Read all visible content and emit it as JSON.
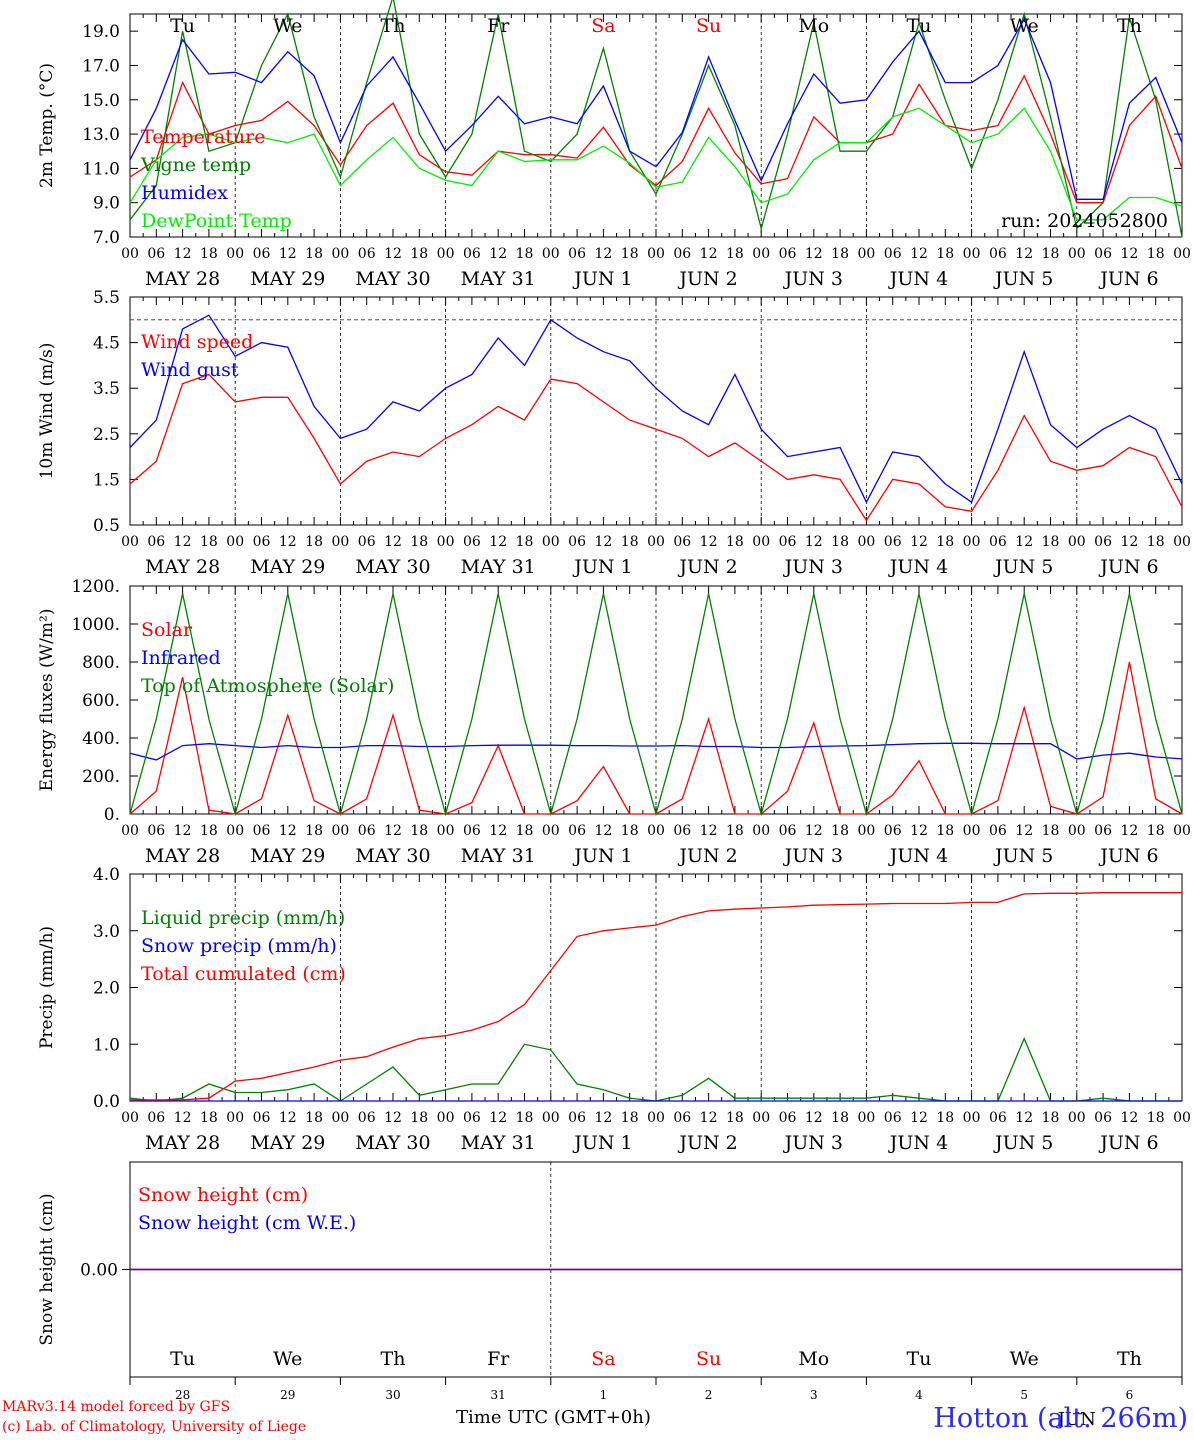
{
  "meteogram": {
    "run_label": "run: 2024052800",
    "x_axis_label": "Time UTC (GMT+0h)",
    "credit_line_1": "MARv3.14 model forced by GFS",
    "credit_line_2": "(c) Lab. of Climatology, University of Liege",
    "station_label": "Hotton (alt. 266m)",
    "hour_ticks": [
      "00",
      "06",
      "12",
      "18"
    ],
    "day_labels": [
      "MAY 28",
      "MAY 29",
      "MAY 30",
      "MAY 31",
      "JUN  1",
      "JUN  2",
      "JUN  3",
      "JUN  4",
      "JUN  5",
      "JUN  6"
    ],
    "weekdays": [
      "Tu",
      "We",
      "Th",
      "Fr",
      "Sa",
      "Su",
      "Mo",
      "Tu",
      "We",
      "Th"
    ],
    "weekend_indices": [
      4,
      5
    ],
    "weekday_color": "#000000",
    "weekend_color": "#ff0000",
    "snow_panel_day_numbers": [
      "28",
      "29",
      "30",
      "31",
      "1",
      "2",
      "3",
      "4",
      "5",
      "6"
    ],
    "snow_panel_month_label": "JUN"
  },
  "chart_data": [
    {
      "type": "line",
      "panel": "temperature",
      "ylabel": "2m Temp. (°C)",
      "ylim": [
        7,
        20
      ],
      "yticks": [
        "7.0",
        "9.0",
        "11.0",
        "13.0",
        "15.0",
        "17.0",
        "19.0"
      ],
      "x_hours": [
        0,
        6,
        12,
        18,
        24,
        30,
        36,
        42,
        48,
        54,
        60,
        66,
        72,
        78,
        84,
        90,
        96,
        102,
        108,
        114,
        120,
        126,
        132,
        138,
        144,
        150,
        156,
        162,
        168,
        174,
        180,
        186,
        192,
        198,
        204,
        210,
        216,
        222,
        228,
        234,
        240
      ],
      "series": [
        {
          "name": "Temperature",
          "color": "#ff0000",
          "values": [
            10.5,
            11.5,
            16,
            13,
            13.5,
            13.8,
            14.9,
            13.5,
            11.2,
            13.5,
            14.8,
            11.8,
            10.8,
            10.6,
            12,
            11.8,
            11.8,
            11.6,
            13.4,
            11.2,
            10.0,
            11.4,
            14.5,
            11.9,
            10.1,
            10.4,
            14.0,
            12.5,
            12.5,
            13.0,
            15.9,
            13.5,
            13.2,
            13.5,
            16.4,
            13.0,
            9.0,
            9.0,
            13.5,
            15.2,
            11.0
          ]
        },
        {
          "name": "Vigne temp",
          "color": "#008000",
          "values": [
            8,
            10,
            19,
            12,
            12.5,
            17,
            20,
            14,
            10.5,
            16,
            21,
            13,
            10.5,
            13,
            20,
            12,
            11.4,
            13,
            18,
            12,
            9.5,
            13,
            17,
            13.5,
            7.5,
            13,
            19.5,
            12,
            12,
            14,
            19.5,
            15,
            11,
            15,
            20,
            14,
            7.5,
            9,
            19.8,
            15,
            7
          ]
        },
        {
          "name": "Humidex",
          "color": "#0000ff",
          "values": [
            11.5,
            14.5,
            18.5,
            16.5,
            16.6,
            16.0,
            17.8,
            16.4,
            12.5,
            15.8,
            17.5,
            14.8,
            12.0,
            13.5,
            15.2,
            13.6,
            14.0,
            13.6,
            15.8,
            12.0,
            11.1,
            13.1,
            17.5,
            13.8,
            10.3,
            13.6,
            16.5,
            14.8,
            15.0,
            17.2,
            19.0,
            16.0,
            16.0,
            17.0,
            19.7,
            16.0,
            9.2,
            9.2,
            14.8,
            16.3,
            12.5
          ]
        },
        {
          "name": "DewPoint Temp",
          "color": "#00ee00",
          "values": [
            9,
            11.5,
            12.8,
            13,
            12.5,
            12.8,
            12.5,
            13,
            10,
            11.5,
            12.8,
            11,
            10.3,
            10,
            12,
            11.4,
            11.5,
            11.5,
            12.3,
            11.3,
            9.9,
            10.2,
            12.8,
            11.1,
            9.0,
            9.5,
            11.5,
            12.5,
            12.5,
            14.0,
            14.5,
            13.5,
            12.5,
            13.0,
            14.5,
            12.0,
            8.0,
            8.0,
            9.3,
            9.3,
            8.8
          ]
        }
      ]
    },
    {
      "type": "line",
      "panel": "wind",
      "ylabel": "10m Wind (m/s)",
      "ylim": [
        0.5,
        5.5
      ],
      "yticks": [
        "0.5",
        "1.5",
        "2.5",
        "3.5",
        "4.5",
        "5.5"
      ],
      "reference_line": 5.0,
      "x_hours": [
        0,
        6,
        12,
        18,
        24,
        30,
        36,
        42,
        48,
        54,
        60,
        66,
        72,
        78,
        84,
        90,
        96,
        102,
        108,
        114,
        120,
        126,
        132,
        138,
        144,
        150,
        156,
        162,
        168,
        174,
        180,
        186,
        192,
        198,
        204,
        210,
        216,
        222,
        228,
        234,
        240
      ],
      "series": [
        {
          "name": "Wind speed",
          "color": "#ff0000",
          "values": [
            1.4,
            1.9,
            3.6,
            3.8,
            3.2,
            3.3,
            3.3,
            2.4,
            1.4,
            1.9,
            2.1,
            2.0,
            2.4,
            2.7,
            3.1,
            2.8,
            3.7,
            3.6,
            3.2,
            2.8,
            2.6,
            2.4,
            2.0,
            2.3,
            1.9,
            1.5,
            1.6,
            1.5,
            0.6,
            1.5,
            1.4,
            0.9,
            0.8,
            1.7,
            2.9,
            1.9,
            1.7,
            1.8,
            2.2,
            2.0,
            0.9
          ]
        },
        {
          "name": "Wind gust",
          "color": "#0000ff",
          "values": [
            2.2,
            2.8,
            4.8,
            5.1,
            4.2,
            4.5,
            4.4,
            3.1,
            2.4,
            2.6,
            3.2,
            3.0,
            3.5,
            3.8,
            4.6,
            4.0,
            5.0,
            4.6,
            4.3,
            4.1,
            3.5,
            3.0,
            2.7,
            3.8,
            2.6,
            2.0,
            2.1,
            2.2,
            1.0,
            2.1,
            2.0,
            1.4,
            1.0,
            2.6,
            4.3,
            2.7,
            2.2,
            2.6,
            2.9,
            2.6,
            1.4
          ]
        }
      ]
    },
    {
      "type": "line",
      "panel": "energy",
      "ylabel": "Energy fluxes (W/m²)",
      "ylim": [
        0,
        1200
      ],
      "yticks": [
        "0.",
        "200.",
        "400.",
        "600.",
        "800.",
        "1000.",
        "1200."
      ],
      "x_hours": [
        0,
        6,
        12,
        18,
        24,
        30,
        36,
        42,
        48,
        54,
        60,
        66,
        72,
        78,
        84,
        90,
        96,
        102,
        108,
        114,
        120,
        126,
        132,
        138,
        144,
        150,
        156,
        162,
        168,
        174,
        180,
        186,
        192,
        198,
        204,
        210,
        216,
        222,
        228,
        234,
        240
      ],
      "series": [
        {
          "name": "Solar",
          "color": "#ff0000",
          "values": [
            0,
            120,
            720,
            20,
            0,
            80,
            520,
            70,
            0,
            80,
            520,
            20,
            0,
            60,
            360,
            0,
            0,
            70,
            250,
            0,
            0,
            80,
            500,
            0,
            0,
            120,
            480,
            0,
            0,
            100,
            280,
            0,
            0,
            70,
            560,
            40,
            0,
            90,
            800,
            80,
            0
          ]
        },
        {
          "name": "Infrared",
          "color": "#0000ff",
          "values": [
            320,
            285,
            360,
            370,
            360,
            350,
            360,
            350,
            350,
            360,
            360,
            355,
            355,
            360,
            362,
            362,
            362,
            360,
            360,
            358,
            358,
            360,
            355,
            355,
            350,
            350,
            355,
            358,
            360,
            365,
            370,
            372,
            372,
            370,
            370,
            370,
            290,
            310,
            320,
            300,
            290
          ]
        },
        {
          "name": "Top of Atmosphere (Solar)",
          "color": "#008000",
          "values": [
            0,
            500,
            1160,
            500,
            0,
            500,
            1160,
            500,
            0,
            500,
            1160,
            500,
            0,
            500,
            1160,
            500,
            0,
            500,
            1160,
            500,
            0,
            500,
            1160,
            500,
            0,
            500,
            1160,
            500,
            0,
            500,
            1160,
            500,
            0,
            500,
            1160,
            500,
            0,
            500,
            1160,
            500,
            0
          ]
        }
      ]
    },
    {
      "type": "line",
      "panel": "precip",
      "ylabel": "Precip (mm/h)",
      "ylim": [
        0,
        4
      ],
      "yticks": [
        "0.0",
        "1.0",
        "2.0",
        "3.0",
        "4.0"
      ],
      "x_hours": [
        0,
        6,
        12,
        18,
        24,
        30,
        36,
        42,
        48,
        54,
        60,
        66,
        72,
        78,
        84,
        90,
        96,
        102,
        108,
        114,
        120,
        126,
        132,
        138,
        144,
        150,
        156,
        162,
        168,
        174,
        180,
        186,
        192,
        198,
        204,
        210,
        216,
        222,
        228,
        234,
        240
      ],
      "series": [
        {
          "name": "Liquid precip (mm/h)",
          "color": "#008000",
          "values": [
            0.05,
            0.0,
            0.05,
            0.3,
            0.15,
            0.15,
            0.2,
            0.3,
            0.0,
            0.3,
            0.6,
            0.1,
            0.2,
            0.3,
            0.3,
            1.0,
            0.9,
            0.3,
            0.2,
            0.05,
            0.0,
            0.1,
            0.4,
            0.05,
            0.05,
            0.05,
            0.05,
            0.05,
            0.05,
            0.1,
            0.05,
            0.0,
            0.0,
            0.0,
            1.1,
            0.0,
            0.0,
            0.05,
            0.0,
            0.0,
            0.0
          ]
        },
        {
          "name": "Snow precip (mm/h)",
          "color": "#0000ff",
          "values": [
            0,
            0,
            0,
            0,
            0,
            0,
            0,
            0,
            0,
            0,
            0,
            0,
            0,
            0,
            0,
            0,
            0,
            0,
            0,
            0,
            0,
            0,
            0,
            0,
            0,
            0,
            0,
            0,
            0,
            0,
            0,
            0,
            0,
            0,
            0,
            0,
            0,
            0,
            0,
            0,
            0
          ]
        },
        {
          "name": "Total cumulated (cm)",
          "color": "#ff0000",
          "values": [
            0.02,
            0.02,
            0.02,
            0.05,
            0.35,
            0.4,
            0.5,
            0.6,
            0.72,
            0.78,
            0.95,
            1.1,
            1.15,
            1.25,
            1.4,
            1.7,
            2.3,
            2.9,
            3.0,
            3.05,
            3.1,
            3.25,
            3.35,
            3.38,
            3.4,
            3.42,
            3.45,
            3.46,
            3.47,
            3.48,
            3.48,
            3.48,
            3.5,
            3.5,
            3.65,
            3.66,
            3.66,
            3.67,
            3.67,
            3.67,
            3.67
          ]
        }
      ]
    },
    {
      "type": "line",
      "panel": "snow",
      "ylabel": "Snow height (cm)",
      "ylim": [
        -1,
        1
      ],
      "yticks": [
        "0.00"
      ],
      "x_hours": [
        0,
        240
      ],
      "series": [
        {
          "name": "Snow height (cm)",
          "color": "#ff0000",
          "values": [
            0,
            0
          ]
        },
        {
          "name": "Snow height (cm W.E.)",
          "color": "#0000ff",
          "values": [
            0,
            0
          ]
        }
      ]
    }
  ]
}
